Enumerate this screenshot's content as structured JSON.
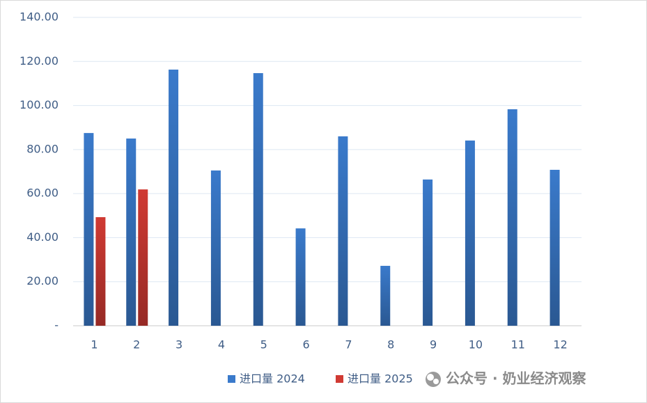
{
  "chart_data": {
    "type": "bar",
    "categories": [
      "1",
      "2",
      "3",
      "4",
      "5",
      "6",
      "7",
      "8",
      "9",
      "10",
      "11",
      "12"
    ],
    "series": [
      {
        "name": "进口量 2024",
        "color": "#3a7acb",
        "values": [
          87.5,
          85.0,
          116.3,
          70.5,
          114.7,
          44.2,
          86.0,
          27.2,
          66.4,
          84.1,
          98.3,
          70.8
        ]
      },
      {
        "name": "进口量 2025",
        "color": "#d03a33",
        "values": [
          49.3,
          61.9,
          null,
          null,
          null,
          null,
          null,
          null,
          null,
          null,
          null,
          null
        ]
      }
    ],
    "ylim": [
      0,
      140
    ],
    "yticks": [
      {
        "value": 0,
        "label": "-"
      },
      {
        "value": 20,
        "label": "20.00"
      },
      {
        "value": 40,
        "label": "40.00"
      },
      {
        "value": 60,
        "label": "60.00"
      },
      {
        "value": 80,
        "label": "80.00"
      },
      {
        "value": 100,
        "label": "100.00"
      },
      {
        "value": 120,
        "label": "120.00"
      },
      {
        "value": 140,
        "label": "140.00"
      }
    ],
    "grid": true,
    "legend": "bottom",
    "watermark": "公众号 · 奶业经济观察"
  }
}
